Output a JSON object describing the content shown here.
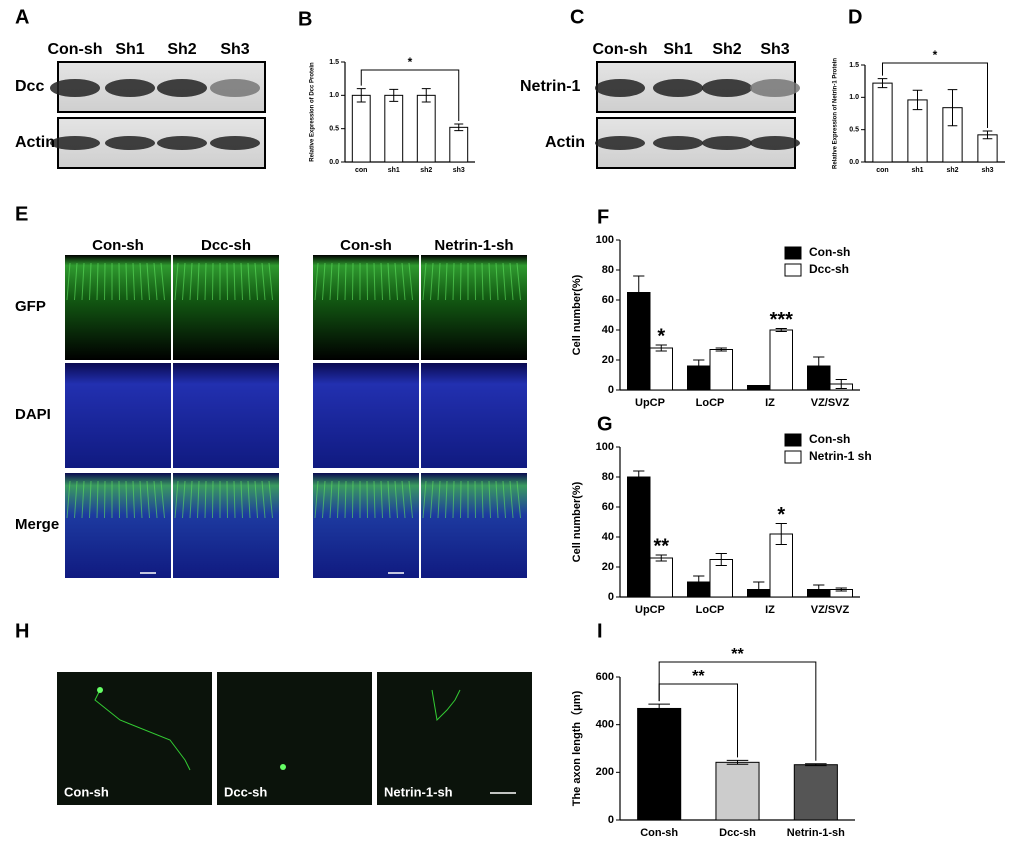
{
  "panel_letters": [
    "A",
    "B",
    "C",
    "D",
    "E",
    "F",
    "G",
    "H",
    "I"
  ],
  "blots": [
    {
      "lanes": [
        "Con-sh",
        "Sh1",
        "Sh2",
        "Sh3"
      ],
      "rows": [
        "Dcc",
        "Actin"
      ]
    },
    {
      "lanes": [
        "Con-sh",
        "Sh1",
        "Sh2",
        "Sh3"
      ],
      "rows": [
        "Netrin-1",
        "Actin"
      ]
    }
  ],
  "sections": {
    "columns": [
      "Con-sh",
      "Dcc-sh",
      "Con-sh",
      "Netrin-1-sh"
    ],
    "rows": [
      "GFP",
      "DAPI",
      "Merge"
    ]
  },
  "neurons": [
    "Con-sh",
    "Dcc-sh",
    "Netrin-1-sh"
  ],
  "chart_data": [
    {
      "type": "bar",
      "ylabel": "Relative Expression of Dcc Protein",
      "categories": [
        "con",
        "sh1",
        "sh2",
        "sh3"
      ],
      "values": [
        1.0,
        1.0,
        1.0,
        0.52
      ],
      "errors": [
        0.1,
        0.09,
        0.1,
        0.05
      ],
      "color": "#ffffff",
      "ylim": [
        0,
        1.5
      ],
      "yticks": [
        {
          "value": 0,
          "label": "0.0"
        },
        0.5,
        {
          "value": 1,
          "label": "1.0"
        },
        1.5
      ],
      "annotations": [
        "*"
      ]
    },
    {
      "type": "bar",
      "ylabel": "Relative Expression of Netrin-1 Protein",
      "categories": [
        "con",
        "sh1",
        "sh2",
        "sh3"
      ],
      "values": [
        1.22,
        0.96,
        0.84,
        0.42
      ],
      "errors": [
        0.07,
        0.15,
        0.28,
        0.06
      ],
      "color": "#ffffff",
      "ylim": [
        0,
        1.5
      ],
      "yticks": [
        {
          "value": 0,
          "label": "0.0"
        },
        0.5,
        {
          "value": 1,
          "label": "1.0"
        },
        1.5
      ],
      "annotations": [
        "*"
      ]
    },
    {
      "type": "bar",
      "ylabel": "Cell number(%)",
      "categories": [
        "UpCP",
        "LoCP",
        "IZ",
        "VZ/SVZ"
      ],
      "series": [
        {
          "name": "Con-sh",
          "color": "#000000",
          "values": [
            65,
            16,
            3,
            16
          ],
          "errors": [
            11,
            4,
            0,
            6
          ]
        },
        {
          "name": "Dcc-sh",
          "color": "#ffffff",
          "values": [
            28,
            27,
            40,
            4
          ],
          "errors": [
            2,
            1,
            1,
            3
          ]
        }
      ],
      "ylim": [
        0,
        100
      ],
      "yticks": [
        0,
        20,
        40,
        60,
        80,
        100
      ],
      "annotations": [
        "*",
        "***"
      ]
    },
    {
      "type": "bar",
      "ylabel": "Cell number(%)",
      "categories": [
        "UpCP",
        "LoCP",
        "IZ",
        "VZ/SVZ"
      ],
      "series": [
        {
          "name": "Con-sh",
          "color": "#000000",
          "values": [
            80,
            10,
            5,
            5
          ],
          "errors": [
            4,
            4,
            5,
            3
          ]
        },
        {
          "name": "Netrin-1 sh",
          "color": "#ffffff",
          "values": [
            26,
            25,
            42,
            5
          ],
          "errors": [
            2,
            4,
            7,
            1
          ]
        }
      ],
      "ylim": [
        0,
        100
      ],
      "yticks": [
        0,
        20,
        40,
        60,
        80,
        100
      ],
      "annotations": [
        "**",
        "*"
      ]
    },
    {
      "type": "bar",
      "ylabel": "The axon length（μm)",
      "categories": [
        "Con-sh",
        "Dcc-sh",
        "Netrin-1-sh"
      ],
      "values": [
        468,
        242,
        232
      ],
      "errors": [
        18,
        8,
        4
      ],
      "colors": [
        "#000000",
        "#cccccc",
        "#555555"
      ],
      "ylim": [
        0,
        600
      ],
      "yticks": [
        0,
        200,
        400,
        600
      ],
      "annotations": [
        "**",
        "**"
      ]
    }
  ]
}
